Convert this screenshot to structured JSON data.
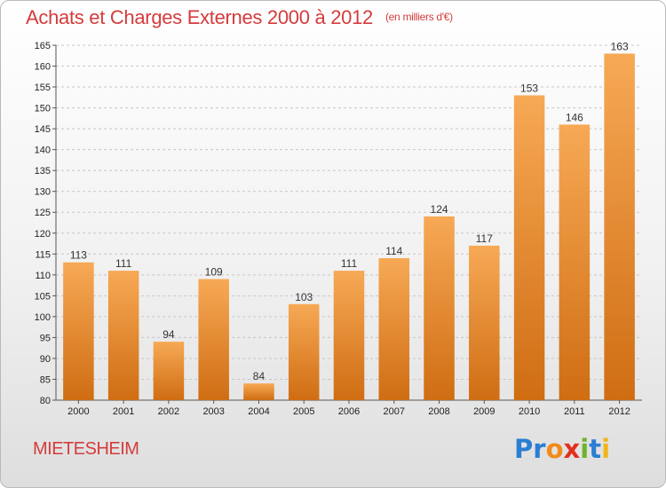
{
  "header": {
    "title": "Achats et Charges Externes 2000 à 2012",
    "unit": "(en milliers d'€)"
  },
  "footer": {
    "commune": "MIETESHEIM",
    "logo_letters": [
      {
        "ch": "P",
        "color": "#2a7fd4"
      },
      {
        "ch": "r",
        "color": "#2a7fd4"
      },
      {
        "ch": "o",
        "color": "#f28a1a"
      },
      {
        "ch": "x",
        "color": "#e2301f"
      },
      {
        "ch": "i",
        "color": "#6fb22c"
      },
      {
        "ch": "t",
        "color": "#2a7fd4"
      },
      {
        "ch": "i",
        "color": "#f2b51a"
      }
    ]
  },
  "colors": {
    "bar_top": "#f7a955",
    "bar_bottom": "#cf6d13",
    "grid": "#c8c8c8",
    "text_accent": "#d43c3c"
  },
  "chart_data": {
    "type": "bar",
    "title": "Achats et Charges Externes 2000 à 2012",
    "subtitle": "(en milliers d'€)",
    "categories": [
      "2000",
      "2001",
      "2002",
      "2003",
      "2004",
      "2005",
      "2006",
      "2007",
      "2008",
      "2009",
      "2010",
      "2011",
      "2012"
    ],
    "values": [
      113,
      111,
      94,
      109,
      84,
      103,
      111,
      114,
      124,
      117,
      153,
      146,
      163
    ],
    "ylim": [
      80,
      165
    ],
    "yticks": [
      80,
      85,
      90,
      95,
      100,
      105,
      110,
      115,
      120,
      125,
      130,
      135,
      140,
      145,
      150,
      155,
      160,
      165
    ],
    "grid": true,
    "legend": "none"
  }
}
